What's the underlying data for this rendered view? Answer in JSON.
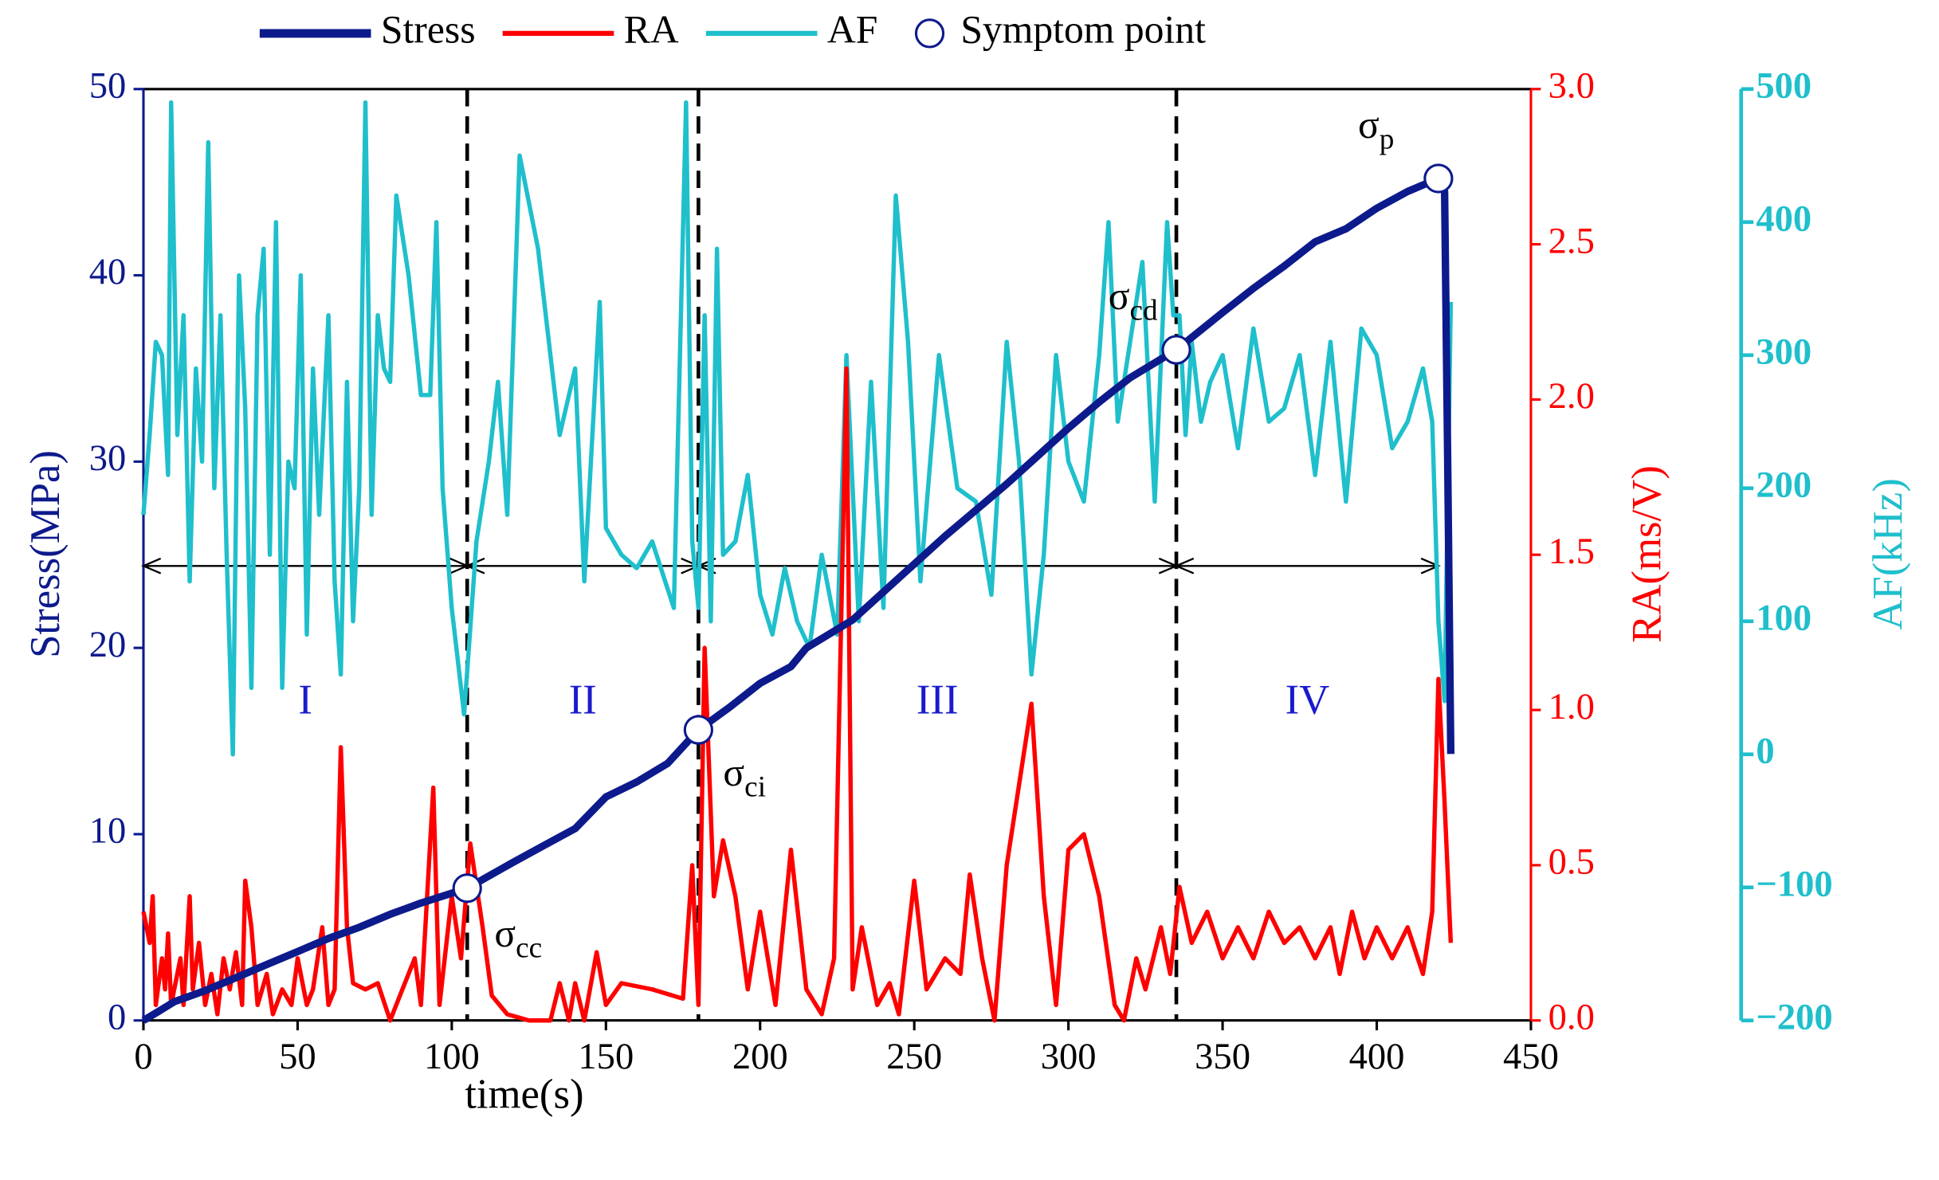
{
  "chart_data": {
    "type": "line",
    "x_label": "time(s)",
    "y_label": "Stress(MPa)",
    "y2_label": "RA(ms/V)",
    "y3_label": "AF(kHz)",
    "xlim": [
      0,
      450
    ],
    "xticks": [
      0,
      50,
      100,
      150,
      200,
      250,
      300,
      350,
      400,
      450
    ],
    "ylim": [
      0,
      50
    ],
    "yticks": [
      0,
      10,
      20,
      30,
      40,
      50
    ],
    "y2lim": [
      0,
      3
    ],
    "y2ticks": [
      {
        "value": 0,
        "label": "0.0"
      },
      0.5,
      {
        "value": 1,
        "label": "1.0"
      },
      1.5,
      {
        "value": 2,
        "label": "2.0"
      },
      2.5,
      {
        "value": 3,
        "label": "3.0"
      }
    ],
    "y3lim": [
      -200,
      500
    ],
    "y3ticks": [
      {
        "value": -200,
        "label": "−200"
      },
      {
        "value": -100,
        "label": "−100"
      },
      0,
      100,
      200,
      300,
      400,
      500
    ],
    "series": [
      {
        "name": "Stress",
        "color": "#0d1a8c",
        "axis": "y",
        "x": [
          0,
          5,
          10,
          20,
          30,
          40,
          50,
          60,
          70,
          80,
          90,
          105,
          120,
          130,
          140,
          150,
          160,
          170,
          180,
          190,
          200,
          210,
          215,
          230,
          240,
          250,
          260,
          270,
          280,
          290,
          300,
          310,
          320,
          335,
          350,
          360,
          370,
          380,
          390,
          400,
          410,
          420,
          422,
          423,
          424
        ],
        "values": [
          0,
          0.5,
          1,
          1.6,
          2.3,
          3,
          3.7,
          4.4,
          5,
          5.7,
          6.3,
          7.1,
          8.5,
          9.4,
          10.3,
          12,
          12.8,
          13.8,
          15.6,
          16.8,
          18.1,
          19,
          20,
          21.5,
          23,
          24.5,
          26,
          27.4,
          28.8,
          30.3,
          31.8,
          33.2,
          34.5,
          36,
          38,
          39.3,
          40.5,
          41.8,
          42.5,
          43.6,
          44.5,
          45.2,
          44.5,
          30,
          14.3
        ]
      },
      {
        "name": "RA",
        "color": "#ff0000",
        "axis": "y2",
        "x": [
          0,
          2,
          3,
          4,
          6,
          7,
          8,
          9,
          10,
          12,
          13,
          15,
          16,
          18,
          20,
          22,
          24,
          26,
          28,
          30,
          32,
          33,
          35,
          37,
          40,
          42,
          45,
          48,
          50,
          53,
          55,
          58,
          60,
          62,
          64,
          66,
          68,
          72,
          76,
          80,
          84,
          88,
          90,
          94,
          96,
          100,
          103,
          106,
          110,
          113,
          118,
          125,
          132,
          135,
          138,
          140,
          143,
          147,
          150,
          155,
          165,
          175,
          178,
          180,
          182,
          185,
          188,
          192,
          196,
          200,
          205,
          210,
          215,
          220,
          224,
          228,
          230,
          233,
          238,
          242,
          245,
          250,
          254,
          260,
          265,
          268,
          272,
          276,
          280,
          288,
          292,
          296,
          300,
          305,
          310,
          315,
          318,
          322,
          325,
          330,
          333,
          336,
          340,
          345,
          350,
          355,
          360,
          365,
          370,
          375,
          380,
          385,
          388,
          392,
          396,
          400,
          405,
          410,
          415,
          418,
          420,
          422,
          424
        ],
        "values": [
          0.35,
          0.25,
          0.4,
          0.05,
          0.2,
          0.1,
          0.28,
          0.05,
          0.1,
          0.2,
          0.05,
          0.4,
          0.1,
          0.25,
          0.05,
          0.15,
          0.02,
          0.2,
          0.1,
          0.22,
          0.05,
          0.45,
          0.3,
          0.05,
          0.15,
          0.02,
          0.1,
          0.05,
          0.2,
          0.05,
          0.1,
          0.3,
          0.05,
          0.1,
          0.88,
          0.3,
          0.12,
          0.1,
          0.12,
          0,
          0.1,
          0.2,
          0.05,
          0.75,
          0.05,
          0.4,
          0.2,
          0.57,
          0.3,
          0.08,
          0.02,
          0,
          0,
          0.12,
          0,
          0.12,
          0,
          0.22,
          0.05,
          0.12,
          0.1,
          0.07,
          0.5,
          0.05,
          1.2,
          0.4,
          0.58,
          0.4,
          0.1,
          0.35,
          0.05,
          0.55,
          0.1,
          0.02,
          0.2,
          2.1,
          0.1,
          0.3,
          0.05,
          0.12,
          0.02,
          0.45,
          0.1,
          0.2,
          0.15,
          0.47,
          0.2,
          0,
          0.5,
          1.02,
          0.4,
          0.05,
          0.55,
          0.6,
          0.4,
          0.05,
          0,
          0.2,
          0.1,
          0.3,
          0.15,
          0.43,
          0.25,
          0.35,
          0.2,
          0.3,
          0.2,
          0.35,
          0.25,
          0.3,
          0.2,
          0.3,
          0.15,
          0.35,
          0.2,
          0.3,
          0.2,
          0.3,
          0.15,
          0.35,
          1.1,
          0.7,
          0.25
        ]
      },
      {
        "name": "AF",
        "color": "#1fbfcc",
        "axis": "y3",
        "x": [
          0,
          2,
          4,
          6,
          8,
          9,
          11,
          13,
          15,
          17,
          19,
          21,
          23,
          25,
          27,
          29,
          31,
          33,
          35,
          37,
          39,
          41,
          43,
          45,
          47,
          49,
          51,
          53,
          55,
          57,
          60,
          62,
          64,
          66,
          68,
          70,
          72,
          74,
          76,
          78,
          80,
          82,
          86,
          90,
          93,
          95,
          97,
          100,
          104,
          108,
          112,
          115,
          118,
          122,
          128,
          135,
          140,
          143,
          148,
          150,
          155,
          160,
          165,
          172,
          176,
          178,
          180,
          182,
          184,
          186,
          188,
          192,
          196,
          200,
          204,
          208,
          212,
          216,
          220,
          225,
          228,
          232,
          236,
          240,
          244,
          248,
          252,
          258,
          264,
          270,
          275,
          280,
          284,
          288,
          292,
          296,
          300,
          305,
          310,
          313,
          316,
          320,
          324,
          328,
          332,
          334,
          336,
          338,
          340,
          343,
          346,
          350,
          355,
          360,
          365,
          370,
          375,
          380,
          385,
          390,
          395,
          400,
          405,
          410,
          415,
          418,
          420,
          422,
          424
        ],
        "values": [
          180,
          240,
          310,
          300,
          210,
          490,
          240,
          330,
          130,
          290,
          220,
          460,
          200,
          330,
          150,
          0,
          360,
          260,
          50,
          330,
          380,
          150,
          400,
          50,
          220,
          200,
          360,
          90,
          290,
          180,
          330,
          130,
          60,
          280,
          100,
          200,
          490,
          180,
          330,
          290,
          280,
          420,
          360,
          270,
          270,
          400,
          200,
          110,
          30,
          160,
          220,
          280,
          180,
          450,
          380,
          240,
          290,
          130,
          340,
          170,
          150,
          140,
          160,
          110,
          490,
          160,
          110,
          330,
          100,
          380,
          150,
          160,
          210,
          120,
          90,
          140,
          100,
          80,
          150,
          90,
          300,
          100,
          280,
          110,
          420,
          310,
          130,
          300,
          200,
          190,
          120,
          310,
          220,
          60,
          150,
          300,
          220,
          190,
          300,
          400,
          250,
          310,
          370,
          190,
          400,
          330,
          330,
          240,
          310,
          250,
          280,
          300,
          230,
          320,
          250,
          260,
          300,
          210,
          310,
          190,
          320,
          300,
          230,
          250,
          290,
          250,
          100,
          40,
          340
        ]
      }
    ],
    "symptom_points": {
      "name": "Symptom point",
      "color": "#0d1a8c",
      "x": [
        105,
        180,
        335,
        420
      ],
      "values": [
        7.1,
        15.6,
        36,
        45.2
      ],
      "labels": [
        {
          "base": "σ",
          "sub": "cc"
        },
        {
          "base": "σ",
          "sub": "ci"
        },
        {
          "base": "σ",
          "sub": "cd"
        },
        {
          "base": "σ",
          "sub": "p"
        }
      ]
    },
    "stage_boundaries": [
      105,
      180,
      335
    ],
    "arrow_level": 24.4,
    "stage_label_level": 17,
    "stages": [
      {
        "label": "I",
        "start": 0,
        "end": 105
      },
      {
        "label": "II",
        "start": 105,
        "end": 180
      },
      {
        "label": "III",
        "start": 180,
        "end": 335
      },
      {
        "label": "IV",
        "start": 335,
        "end": 420
      }
    ],
    "stage_label_color": "#1a1acc"
  }
}
